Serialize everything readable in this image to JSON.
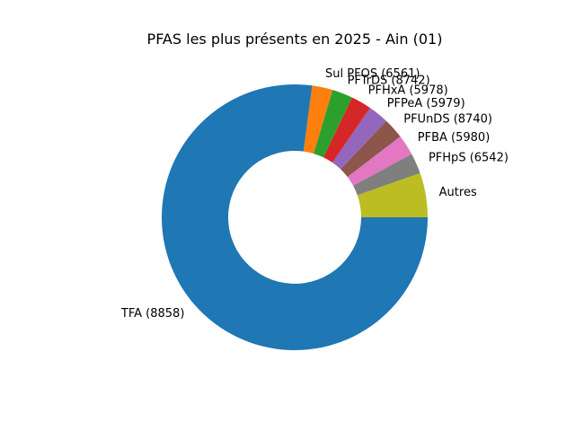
{
  "chart_data": {
    "type": "pie",
    "donut": true,
    "title": "PFAS les plus présents en 2025 - Ain (01)",
    "start_angle_deg": 0,
    "direction": "counterclockwise",
    "slices": [
      {
        "label": "Autres",
        "value": 5.4,
        "color": "#bcbd22"
      },
      {
        "label": "PFHpS (6542)",
        "value": 2.5,
        "color": "#7f7f7f"
      },
      {
        "label": "PFBA (5980)",
        "value": 2.5,
        "color": "#e377c2"
      },
      {
        "label": "PFUnDS (8740)",
        "value": 2.5,
        "color": "#8c564b"
      },
      {
        "label": "PFPeA (5979)",
        "value": 2.5,
        "color": "#9467bd"
      },
      {
        "label": "PFHxA (5978)",
        "value": 2.5,
        "color": "#d62728"
      },
      {
        "label": "PFTrDS (8742)",
        "value": 2.5,
        "color": "#2ca02c"
      },
      {
        "label": "Sul PFOS (6561)",
        "value": 2.5,
        "color": "#ff7f0e"
      },
      {
        "label": "TFA (8858)",
        "value": 77.1,
        "color": "#1f77b4"
      }
    ]
  }
}
